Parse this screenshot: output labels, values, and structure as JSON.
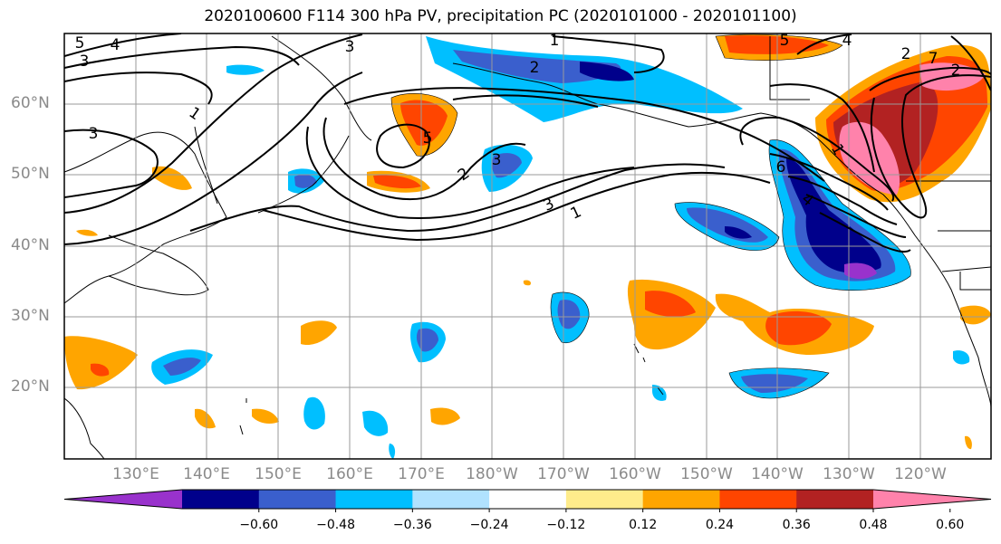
{
  "title": "2020100600 F114 300 hPa PV, precipitation PC (2020101000 - 2020101100)",
  "latitude_labels": [
    "60°N",
    "50°N",
    "40°N",
    "30°N",
    "20°N"
  ],
  "longitude_labels": [
    "130°E",
    "140°E",
    "150°E",
    "160°E",
    "170°E",
    "180°W",
    "170°W",
    "160°W",
    "150°W",
    "140°W",
    "130°W",
    "120°W"
  ],
  "pv_contour_labels": [
    "5",
    "4",
    "3",
    "3",
    "1",
    "3",
    "1",
    "5",
    "2",
    "2",
    "3",
    "1",
    "6",
    "4",
    "5",
    "4",
    "2",
    "7",
    "2",
    "1",
    "3"
  ],
  "colorbar": {
    "tick_labels": [
      "−0.60",
      "−0.48",
      "−0.36",
      "−0.24",
      "−0.12",
      "0.12",
      "0.24",
      "0.36",
      "0.48",
      "0.60"
    ],
    "colors": [
      "#9932cc",
      "#00008b",
      "#3a5fcd",
      "#00bfff",
      "#b0e2ff",
      "#ffffff",
      "#ffec8b",
      "#ffa500",
      "#ff4500",
      "#b22222",
      "#ff82ab"
    ]
  },
  "map_data": {
    "projection": "equirectangular",
    "lon_range": [
      120,
      250
    ],
    "lat_range": [
      10,
      70
    ],
    "grid": true
  }
}
